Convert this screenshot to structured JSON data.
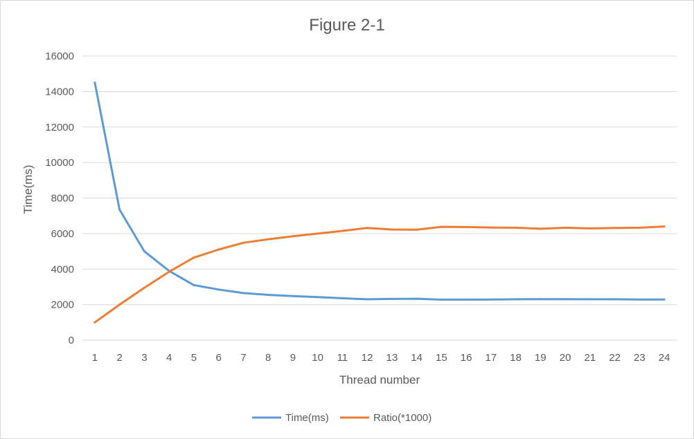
{
  "chart_data": {
    "type": "line",
    "title": "Figure 2-1",
    "xlabel": "Thread number",
    "ylabel": "Time(ms)",
    "ylim": [
      0,
      16000
    ],
    "yticks": [
      0,
      2000,
      4000,
      6000,
      8000,
      10000,
      12000,
      14000,
      16000
    ],
    "grid": true,
    "legend_position": "bottom",
    "categories": [
      "1",
      "2",
      "3",
      "4",
      "5",
      "6",
      "7",
      "8",
      "9",
      "10",
      "11",
      "12",
      "13",
      "14",
      "15",
      "16",
      "17",
      "18",
      "19",
      "20",
      "21",
      "22",
      "23",
      "24"
    ],
    "series": [
      {
        "name": "Time(ms)",
        "color": "#5b9bd5",
        "values": [
          14500,
          7350,
          5000,
          3900,
          3100,
          2850,
          2650,
          2550,
          2480,
          2420,
          2360,
          2300,
          2320,
          2330,
          2280,
          2280,
          2290,
          2300,
          2310,
          2310,
          2300,
          2300,
          2290,
          2290
        ]
      },
      {
        "name": "Ratio(*1000)",
        "color": "#ed7d31",
        "values": [
          1000,
          2000,
          2950,
          3850,
          4650,
          5100,
          5480,
          5680,
          5850,
          6000,
          6150,
          6320,
          6230,
          6220,
          6380,
          6370,
          6340,
          6330,
          6270,
          6330,
          6290,
          6320,
          6330,
          6400
        ]
      }
    ]
  }
}
